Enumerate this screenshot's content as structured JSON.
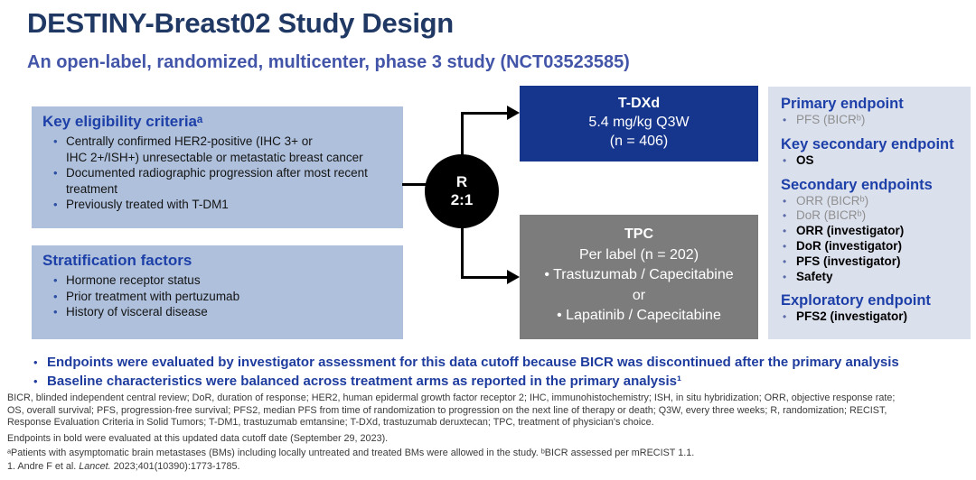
{
  "slide": {
    "title": "DESTINY-Breast02 Study Design",
    "subtitle": "An open-label, randomized, multicenter, phase 3 study (NCT03523585)"
  },
  "eligibility": {
    "heading": "Key eligibility criteriaᵃ",
    "bullets": [
      "Centrally confirmed HER2-positive (IHC 3+ or\nIHC 2+/ISH+) unresectable or metastatic breast cancer",
      "Documented radiographic progression after most recent\ntreatment",
      "Previously treated with T-DM1"
    ]
  },
  "stratification": {
    "heading": "Stratification factors",
    "bullets": [
      "Hormone receptor status",
      "Prior treatment with pertuzumab",
      "History of visceral disease"
    ]
  },
  "randomization": {
    "letter": "R",
    "ratio": "2:1"
  },
  "tdxd_arm": {
    "title": "T-DXd",
    "dose": "5.4 mg/kg Q3W",
    "n": "(n = 406)"
  },
  "tpc_arm": {
    "title": "TPC",
    "subtitle": "Per label (n = 202)",
    "option1": "• Trastuzumab / Capecitabine",
    "or": "or",
    "option2": "• Lapatinib / Capecitabine"
  },
  "endpoints": {
    "primary": {
      "heading": "Primary endpoint",
      "items": [
        "PFS (BICRᵇ)"
      ]
    },
    "key_secondary": {
      "heading": "Key secondary endpoint",
      "items": [
        "OS"
      ]
    },
    "secondary": {
      "heading": "Secondary endpoints",
      "items": [
        "ORR (BICRᵇ)",
        "DoR (BICRᵇ)",
        "ORR (investigator)",
        "DoR (investigator)",
        "PFS (investigator)",
        "Safety"
      ]
    },
    "exploratory": {
      "heading": "Exploratory endpoint",
      "items": [
        "PFS2 (investigator)"
      ]
    }
  },
  "key_messages": [
    "Endpoints were evaluated by investigator assessment for this data cutoff because BICR was discontinued after the primary analysis",
    "Baseline characteristics were balanced across treatment arms as reported in the primary analysis¹"
  ],
  "footnotes": {
    "abbreviations": [
      "BICR, blinded independent central review; DoR, duration of response; HER2, human epidermal growth factor receptor 2; IHC, immunohistochemistry; ISH, in situ hybridization; ORR, objective response rate;",
      "OS, overall survival; PFS, progression-free survival; PFS2, median PFS from time of randomization to progression on the next line of therapy or death; Q3W, every three weeks; R, randomization; RECIST,",
      "Response Evaluation Criteria in Solid Tumors; T-DM1, trastuzumab emtansine; T-DXd, trastuzumab deruxtecan; TPC, treatment of physician's choice."
    ],
    "bold_note": "Endpoints in bold were evaluated at this updated data cutoff date (September 29, 2023).",
    "study_note": "ᵃPatients with asymptomatic brain metastases (BMs) including locally untreated and treated BMs were allowed in the study. ᵇBICR assessed per mRECIST 1.1.",
    "reference_pre": "1. Andre F et al. ",
    "reference_journal": "Lancet.",
    "reference_post": " 2023;401(10390):1773-1785."
  },
  "colors": {
    "title_navy": "#1F3864",
    "subtitle_blue": "#4355A8",
    "heading_blue": "#1D3FA8",
    "panel_light_blue": "#AEC0DC",
    "endpoints_bg": "#DBE0ED",
    "tdxd_blue": "#16358C",
    "tpc_gray": "#7C7C7C",
    "randomization_black": "#000000",
    "dim_gray_text": "#8F8F8F",
    "key_message_blue": "#1E3C9E"
  }
}
